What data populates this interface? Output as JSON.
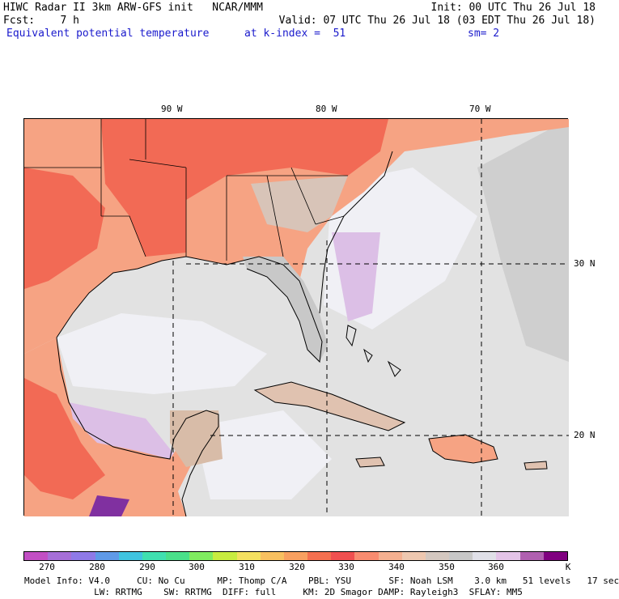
{
  "header": {
    "line1_left": "HIWC Radar II 3km ARW-GFS init   NCAR/MMM",
    "line1_right": "Init: 00 UTC Thu 26 Jul 18",
    "line2_left": "Fcst:    7 h",
    "line2_right": "Valid: 07 UTC Thu 26 Jul 18 (03 EDT Thu 26 Jul 18)",
    "field_name": "Equivalent potential temperature",
    "level": "at k-index =  51",
    "smoothing": "sm= 2"
  },
  "map": {
    "lon_labels": [
      "90 W",
      "80 W",
      "70 W"
    ],
    "lat_labels": [
      "30 N",
      "20 N"
    ]
  },
  "colorbar": {
    "colors": [
      "#c24fc4",
      "#a66fd8",
      "#8f7ae8",
      "#5f9ae8",
      "#40c4e0",
      "#40e0b0",
      "#4ae08a",
      "#80ec60",
      "#c8ec40",
      "#f4e060",
      "#f8c060",
      "#f8a060",
      "#f47050",
      "#f05050",
      "#f88c70",
      "#f4b090",
      "#eec8b0",
      "#d4c8c0",
      "#c8c8c8",
      "#e0e0e8",
      "#e4c4e8",
      "#b060b0",
      "#800080"
    ],
    "tick_labels": [
      "270",
      "280",
      "290",
      "300",
      "310",
      "320",
      "330",
      "340",
      "350",
      "360"
    ],
    "unit": "K"
  },
  "footer": {
    "line1": "Model Info: V4.0     CU: No Cu      MP: Thomp C/A    PBL: YSU       SF: Noah LSM    3.0 km   51 levels   17 sec",
    "line2": "             LW: RRTMG    SW: RRTMG  DIFF: full     KM: 2D Smagor DAMP: Rayleigh3  SFLAY: MM5"
  }
}
